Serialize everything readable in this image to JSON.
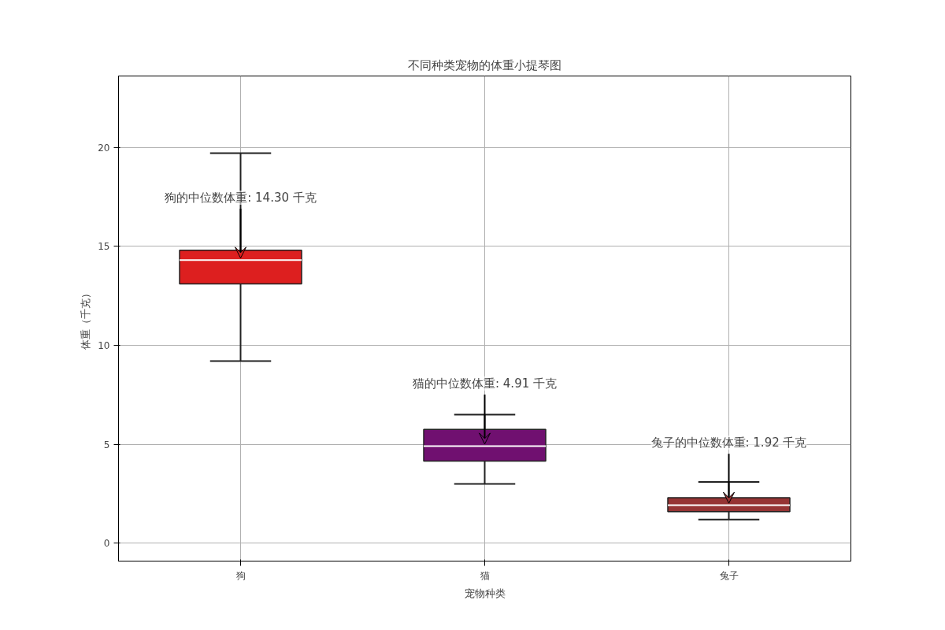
{
  "chart_data": {
    "type": "box",
    "title": "不同种类宠物的体重小提琴图",
    "xlabel": "宠物种类",
    "ylabel": "体重（千克）",
    "categories": [
      "狗",
      "猫",
      "兔子"
    ],
    "colors": [
      "#dd1f1f",
      "#701070",
      "#963434"
    ],
    "boxes": [
      {
        "low": 9.2,
        "q1": 13.1,
        "median": 14.3,
        "q3": 14.8,
        "high": 19.7
      },
      {
        "low": 3.0,
        "q1": 4.15,
        "median": 4.91,
        "q3": 5.75,
        "high": 6.5
      },
      {
        "low": 1.2,
        "q1": 1.6,
        "median": 1.92,
        "q3": 2.3,
        "high": 3.1
      }
    ],
    "annotations": [
      {
        "text": "狗的中位数体重: 14.30 千克",
        "x": "狗",
        "y": 14.3
      },
      {
        "text": "猫的中位数体重: 4.91 千克",
        "x": "猫",
        "y": 4.91
      },
      {
        "text": "兔子的中位数体重: 1.92 千克",
        "x": "兔子",
        "y": 1.92
      }
    ],
    "ylim": [
      -0.9,
      23.6
    ],
    "yticks": [
      0,
      5,
      10,
      15,
      20
    ],
    "grid": true
  }
}
